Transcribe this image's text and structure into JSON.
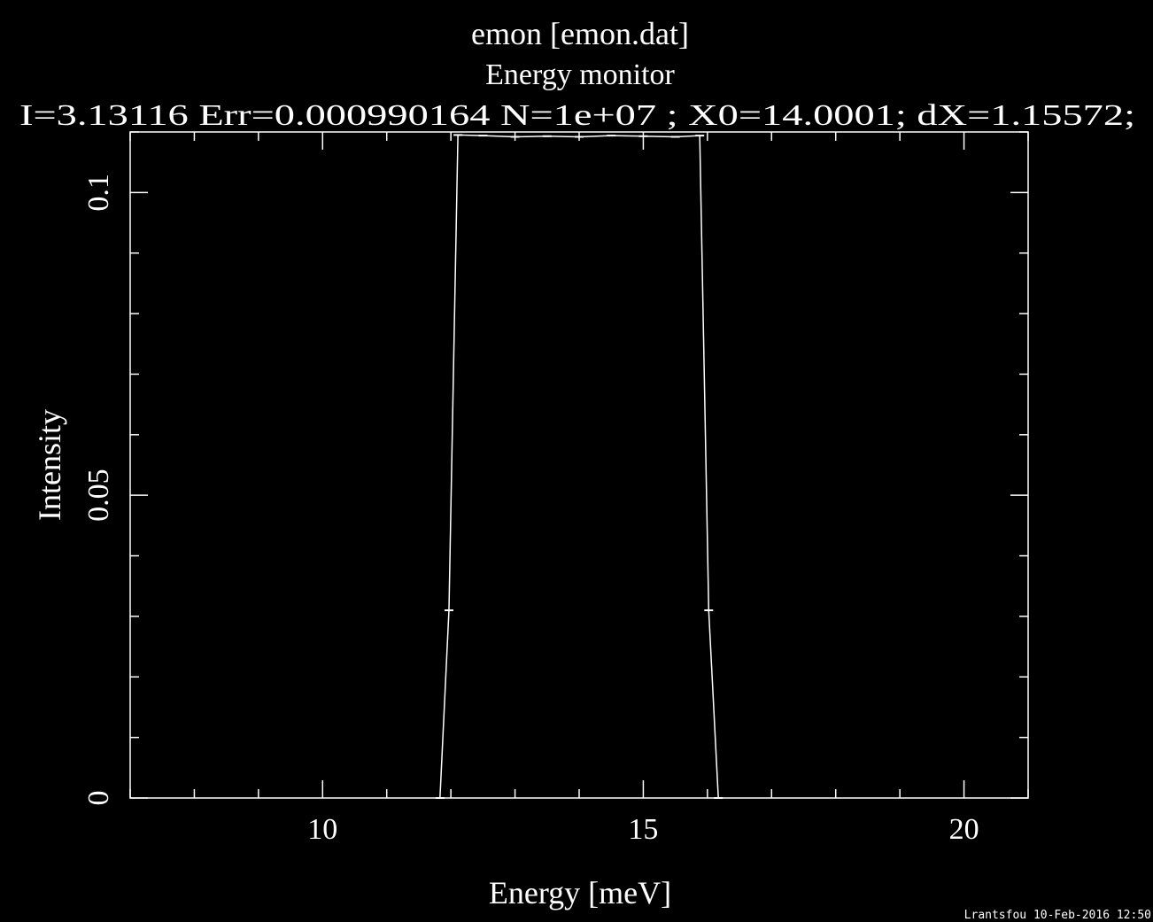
{
  "chart_data": {
    "type": "line",
    "title": "emon [emon.dat]",
    "subtitle": "Energy monitor",
    "annotation": "I=3.13116 Err=0.000990164 N=1e+07 ; X0=14.0001; dX=1.15572;",
    "xlabel": "Energy [meV]",
    "ylabel": "Intensity",
    "footer": "Lrantsfou 10-Feb-2016 12:50",
    "x": [
      11.83,
      11.97,
      12.11,
      12.5,
      13,
      13.5,
      14,
      14.5,
      15,
      15.5,
      15.88,
      16.02,
      16.17
    ],
    "series": [
      {
        "color": "#ffffff",
        "values": [
          0,
          0.031,
          0.1095,
          0.1094,
          0.1092,
          0.1093,
          0.1092,
          0.1094,
          0.1093,
          0.1092,
          0.1094,
          0.031,
          0
        ]
      }
    ],
    "xlim": [
      7,
      21
    ],
    "ylim": [
      0,
      0.11
    ],
    "xticks": [
      10,
      15,
      20
    ],
    "yticks": [
      0,
      0.05,
      0.1
    ],
    "xminorticks": [
      7,
      8,
      9,
      11,
      12,
      13,
      14,
      16,
      17,
      18,
      19,
      21
    ],
    "yminorticks": [
      0.01,
      0.02,
      0.03,
      0.04,
      0.06,
      0.07,
      0.08,
      0.09,
      0.11
    ],
    "axis_color": "#ffffff",
    "background": "#000000"
  }
}
